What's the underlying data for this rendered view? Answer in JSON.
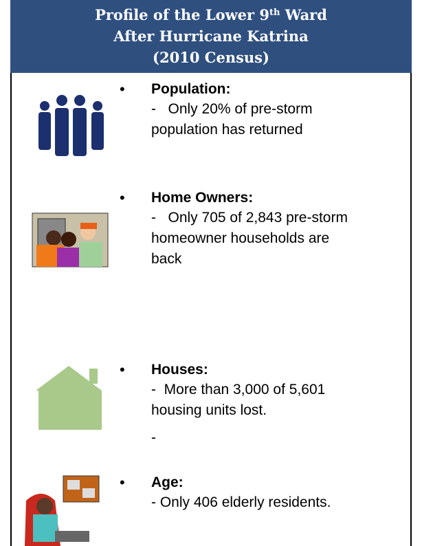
{
  "header": {
    "line1_before": "Profile of the Lower 9",
    "line1_sup": "th",
    "line1_after": " Ward",
    "line2": "After Hurricane Katrina",
    "line3": "(2010 Census)"
  },
  "sections": [
    {
      "label": "Population:",
      "lines": [
        "-   Only 20% of pre-storm",
        "population has returned"
      ]
    },
    {
      "label": "Home Owners:",
      "lines": [
        "-   Only 705 of 2,843 pre-storm",
        "homeowner households are",
        "back"
      ]
    },
    {
      "label": "Houses:",
      "lines": [
        "-  More than 3,000 of 5,601",
        "housing units lost.",
        "-"
      ]
    },
    {
      "label": "Age:",
      "lines": [
        "- Only 406 elderly residents."
      ]
    }
  ]
}
